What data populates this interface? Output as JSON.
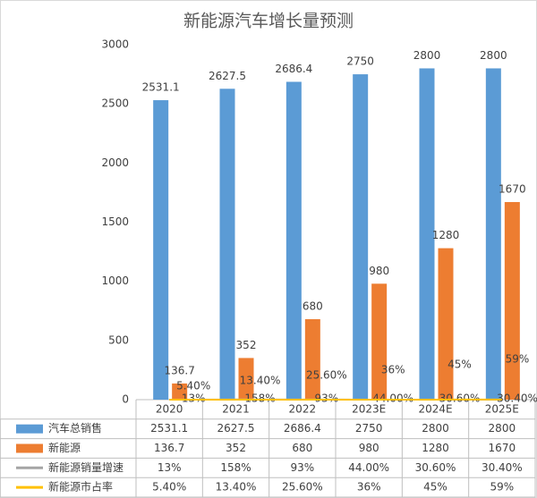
{
  "chart_data": {
    "type": "bar",
    "title": "新能源汽车增长量预测",
    "categories": [
      "2020",
      "2021",
      "2022",
      "2023E",
      "2024E",
      "2025E"
    ],
    "ylim": [
      0,
      3000
    ],
    "yticks": [
      0,
      500,
      1000,
      1500,
      2000,
      2500,
      3000
    ],
    "grid": false,
    "series": [
      {
        "name": "汽车总销售",
        "color": "#5b9bd5",
        "type": "bar",
        "values": [
          2531.1,
          2627.5,
          2686.4,
          2750,
          2800,
          2800
        ]
      },
      {
        "name": "新能源",
        "color": "#ed7d31",
        "type": "bar",
        "values": [
          136.7,
          352,
          680,
          980,
          1280,
          1670
        ]
      },
      {
        "name": "新能源销量增速",
        "color": "#a5a5a5",
        "type": "line",
        "values": [
          0.13,
          1.58,
          0.93,
          0.44,
          0.306,
          0.304
        ],
        "value_labels": [
          "13%",
          "158%",
          "93%",
          "44.00%",
          "30.60%",
          "30.40%"
        ]
      },
      {
        "name": "新能源市占率",
        "color": "#ffc000",
        "type": "line",
        "values": [
          0.054,
          0.134,
          0.256,
          0.36,
          0.45,
          0.59
        ],
        "value_labels": [
          "5.40%",
          "13.40%",
          "25.60%",
          "36%",
          "45%",
          "59%"
        ]
      }
    ]
  }
}
